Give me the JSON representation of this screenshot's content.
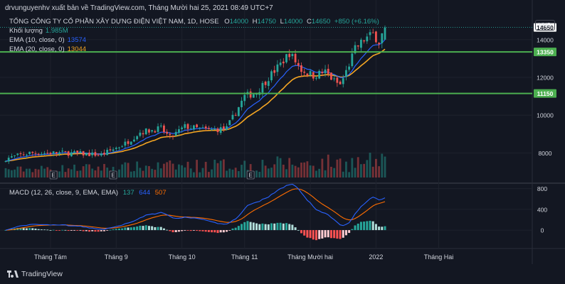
{
  "header": {
    "publisher": "drvunguyenhv xuất bản về TradingView.com, Tháng Mười hai 25, 2021 08:49 UTC+7"
  },
  "legend": {
    "title": "TỔNG CÔNG TY CỔ PHẦN XÂY DỰNG ĐIỆN VIỆT NAM, 1D, HOSE",
    "open_label": "O",
    "open": "14000",
    "high_label": "H",
    "high": "14750",
    "low_label": "L",
    "low": "14000",
    "close_label": "C",
    "close": "14650",
    "change": "+850 (+6.16%)",
    "volume_label": "Khối lượng",
    "volume": "1.985M",
    "ema10_label": "EMA (10, close, 0)",
    "ema10": "13574",
    "ema20_label": "EMA (20, close, 0)",
    "ema20": "13044",
    "macd_label": "MACD (12, 26, close, 9, EMA, EMA)",
    "macd_hist": "137",
    "macd_line": "644",
    "macd_signal": "507"
  },
  "currency": "VND",
  "footer": {
    "brand": "TradingView"
  },
  "colors": {
    "up": "#26a69a",
    "down": "#ef5350",
    "ema10": "#2962ff",
    "ema20": "#f5a623",
    "level": "#4caf50",
    "macd": "#2962ff",
    "signal": "#ff6d00"
  },
  "chart_data": {
    "type": "candlestick",
    "price_axis": {
      "ticks": [
        8000,
        10000,
        12000,
        14000
      ],
      "range": [
        6700,
        15800
      ]
    },
    "macd_axis": {
      "ticks": [
        0,
        400,
        800
      ],
      "range": [
        -300,
        850
      ]
    },
    "x_tick_labels": [
      {
        "label": "Tháng Tám",
        "index": 15
      },
      {
        "label": "Tháng 9",
        "index": 37
      },
      {
        "label": "Tháng 10",
        "index": 59
      },
      {
        "label": "Tháng 11",
        "index": 80
      },
      {
        "label": "Tháng Mười hai",
        "index": 102
      },
      {
        "label": "2022",
        "index": 124
      },
      {
        "label": "Tháng Hai",
        "index": 145
      }
    ],
    "horizontal_levels": [
      {
        "label": "13350",
        "value": 13350
      },
      {
        "label": "11150",
        "value": 11150
      }
    ],
    "last_price_label": "14650",
    "last_price": 14650,
    "event_markers": [
      {
        "label": "E",
        "index": 16
      },
      {
        "label": "E",
        "index": 36
      },
      {
        "label": "E",
        "index": 82
      }
    ],
    "close_path": [
      [
        0,
        7700
      ],
      [
        8,
        8000
      ],
      [
        20,
        8000
      ],
      [
        32,
        7900
      ],
      [
        36,
        8200
      ],
      [
        40,
        8500
      ],
      [
        45,
        9100
      ],
      [
        52,
        9300
      ],
      [
        55,
        8800
      ],
      [
        60,
        9400
      ],
      [
        68,
        9200
      ],
      [
        74,
        9300
      ],
      [
        80,
        11000
      ],
      [
        84,
        11200
      ],
      [
        88,
        12000
      ],
      [
        92,
        12700
      ],
      [
        95,
        13300
      ],
      [
        99,
        12400
      ],
      [
        103,
        12100
      ],
      [
        107,
        12300
      ],
      [
        110,
        11800
      ],
      [
        112,
        11600
      ],
      [
        114,
        12300
      ],
      [
        117,
        13500
      ],
      [
        120,
        14000
      ],
      [
        123,
        14300
      ],
      [
        125,
        13900
      ],
      [
        127,
        14650
      ]
    ]
  }
}
